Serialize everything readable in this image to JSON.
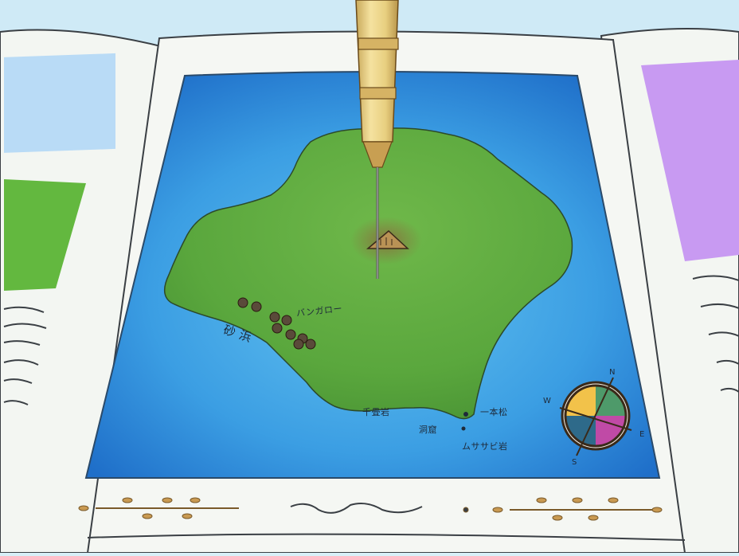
{
  "labels": {
    "bungalow": "バンガロー",
    "beach": "砂 浜",
    "cave1": "千畳岩",
    "cave2": "洞窟",
    "pine": "一本松",
    "rock": "ムササビ岩"
  },
  "compass": {
    "north": "N",
    "east": "E",
    "south": "S",
    "west": "W"
  },
  "colors": {
    "sea": "#2a7fd4",
    "island": "#5fae3e",
    "paper": "#f4f6f1",
    "pen": "#e9cf7e"
  }
}
